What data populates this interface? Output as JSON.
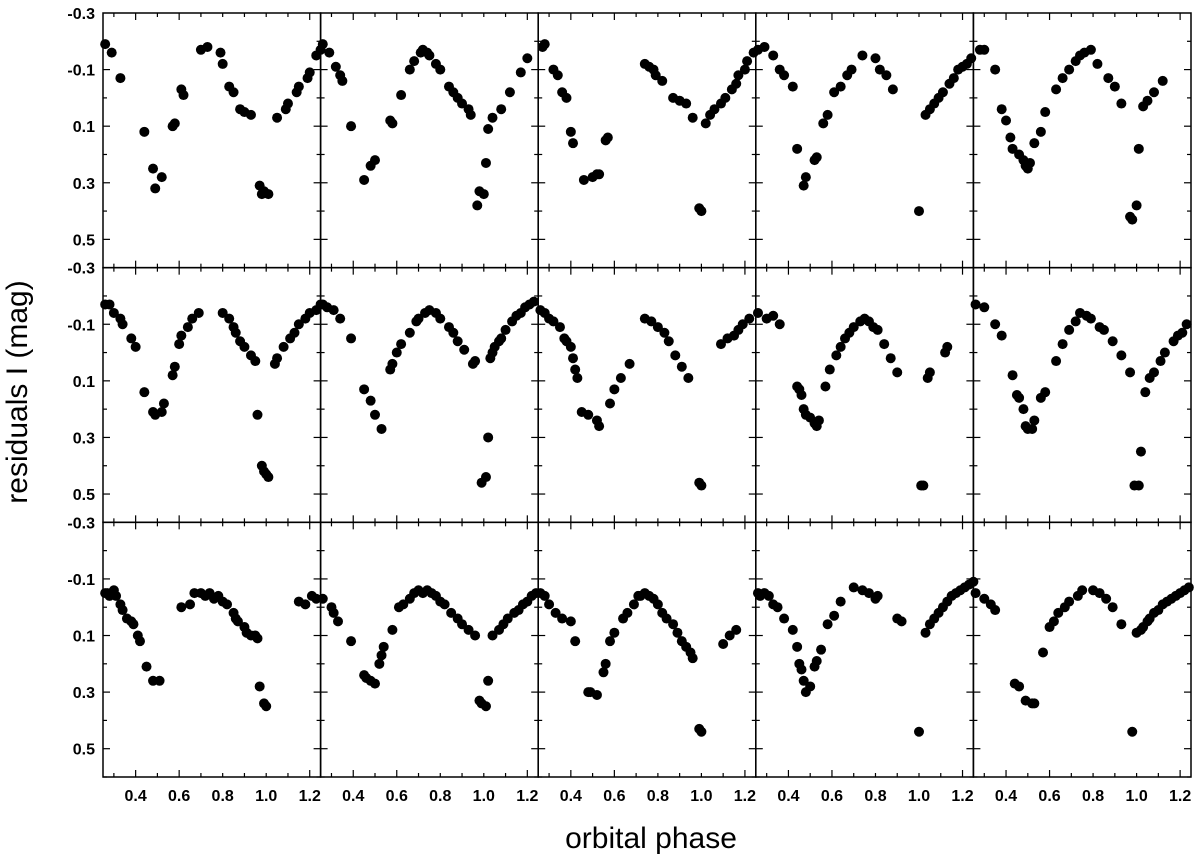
{
  "chart_data": {
    "type": "scatter",
    "layout": {
      "rows": 3,
      "cols": 5
    },
    "xlabel": "orbital phase",
    "ylabel": "residuals I (mag)",
    "xlim": [
      0.25,
      1.25
    ],
    "ylim": [
      0.6,
      -0.3
    ],
    "y_inverted": true,
    "xticks": [
      0.4,
      0.6,
      0.8,
      1.0,
      1.2
    ],
    "xtick_labels": [
      "0.4",
      "0.6",
      "0.8",
      "1.0",
      "1.2"
    ],
    "yticks": [
      -0.3,
      -0.1,
      0.1,
      0.3,
      0.5
    ],
    "ytick_labels": [
      "-0.3",
      "-0.1",
      "0.1",
      "0.3",
      "0.5"
    ],
    "marker_color": "#000000",
    "panels": [
      {
        "x": [
          0.26,
          0.29,
          0.33,
          0.44,
          0.48,
          0.49,
          0.52,
          0.57,
          0.58,
          0.61,
          0.62,
          0.7,
          0.73,
          0.79,
          0.8,
          0.83,
          0.85,
          0.88,
          0.9,
          0.93,
          0.97,
          0.98,
          0.99,
          1.01,
          1.05,
          1.09,
          1.1,
          1.14,
          1.15,
          1.19,
          1.2,
          1.23,
          1.25
        ],
        "y": [
          -0.19,
          -0.16,
          -0.07,
          0.12,
          0.25,
          0.32,
          0.28,
          0.1,
          0.09,
          -0.03,
          -0.01,
          -0.17,
          -0.18,
          -0.16,
          -0.12,
          -0.04,
          -0.02,
          0.04,
          0.05,
          0.06,
          0.31,
          0.34,
          0.33,
          0.34,
          0.07,
          0.04,
          0.02,
          -0.02,
          -0.04,
          -0.07,
          -0.09,
          -0.15,
          -0.17
        ]
      },
      {
        "x": [
          0.26,
          0.29,
          0.32,
          0.34,
          0.35,
          0.39,
          0.45,
          0.48,
          0.5,
          0.57,
          0.58,
          0.62,
          0.66,
          0.68,
          0.71,
          0.72,
          0.74,
          0.75,
          0.78,
          0.8,
          0.84,
          0.86,
          0.88,
          0.9,
          0.93,
          0.94,
          0.97,
          0.98,
          1.0,
          1.01,
          1.02,
          1.04,
          1.08,
          1.12,
          1.17,
          1.2
        ],
        "y": [
          -0.19,
          -0.16,
          -0.11,
          -0.08,
          -0.06,
          0.1,
          0.29,
          0.24,
          0.22,
          0.08,
          0.09,
          -0.01,
          -0.1,
          -0.13,
          -0.16,
          -0.17,
          -0.16,
          -0.15,
          -0.12,
          -0.1,
          -0.04,
          -0.02,
          0.0,
          0.02,
          0.04,
          0.06,
          0.38,
          0.33,
          0.34,
          0.23,
          0.11,
          0.07,
          0.04,
          -0.02,
          -0.09,
          -0.14
        ]
      },
      {
        "x": [
          0.27,
          0.28,
          0.32,
          0.34,
          0.36,
          0.38,
          0.4,
          0.41,
          0.46,
          0.5,
          0.52,
          0.53,
          0.56,
          0.57,
          0.74,
          0.76,
          0.78,
          0.79,
          0.82,
          0.87,
          0.9,
          0.93,
          0.96,
          0.99,
          1.0,
          1.02,
          1.04,
          1.06,
          1.09,
          1.11,
          1.14,
          1.16,
          1.17,
          1.2,
          1.21,
          1.24
        ],
        "y": [
          -0.18,
          -0.19,
          -0.1,
          -0.08,
          -0.02,
          0.0,
          0.12,
          0.16,
          0.29,
          0.28,
          0.27,
          0.27,
          0.15,
          0.14,
          -0.12,
          -0.11,
          -0.1,
          -0.08,
          -0.06,
          0.0,
          0.01,
          0.02,
          0.07,
          0.39,
          0.4,
          0.09,
          0.06,
          0.04,
          0.02,
          0.0,
          -0.03,
          -0.05,
          -0.08,
          -0.1,
          -0.13,
          -0.16
        ]
      },
      {
        "x": [
          0.26,
          0.29,
          0.33,
          0.36,
          0.38,
          0.42,
          0.44,
          0.47,
          0.48,
          0.52,
          0.53,
          0.56,
          0.58,
          0.61,
          0.64,
          0.67,
          0.69,
          0.74,
          0.8,
          0.82,
          0.85,
          0.88,
          1.0,
          1.03,
          1.05,
          1.07,
          1.09,
          1.11,
          1.14,
          1.16,
          1.18,
          1.2,
          1.22,
          1.24
        ],
        "y": [
          -0.17,
          -0.18,
          -0.15,
          -0.1,
          -0.08,
          -0.04,
          0.18,
          0.31,
          0.28,
          0.22,
          0.21,
          0.09,
          0.06,
          -0.02,
          -0.04,
          -0.08,
          -0.1,
          -0.15,
          -0.14,
          -0.1,
          -0.08,
          -0.03,
          0.4,
          0.06,
          0.04,
          0.02,
          0.0,
          -0.02,
          -0.05,
          -0.07,
          -0.1,
          -0.11,
          -0.12,
          -0.14
        ]
      },
      {
        "x": [
          0.28,
          0.3,
          0.35,
          0.38,
          0.4,
          0.42,
          0.43,
          0.46,
          0.48,
          0.49,
          0.5,
          0.51,
          0.53,
          0.56,
          0.58,
          0.63,
          0.66,
          0.69,
          0.72,
          0.74,
          0.76,
          0.79,
          0.82,
          0.87,
          0.9,
          0.93,
          0.97,
          0.98,
          1.0,
          1.01,
          1.03,
          1.05,
          1.08,
          1.12
        ],
        "y": [
          -0.17,
          -0.17,
          -0.1,
          0.04,
          0.08,
          0.14,
          0.18,
          0.2,
          0.22,
          0.24,
          0.25,
          0.23,
          0.16,
          0.12,
          0.05,
          -0.03,
          -0.07,
          -0.1,
          -0.13,
          -0.15,
          -0.16,
          -0.17,
          -0.12,
          -0.07,
          -0.04,
          0.02,
          0.42,
          0.43,
          0.38,
          0.18,
          0.03,
          0.01,
          -0.02,
          -0.06
        ]
      },
      {
        "x": [
          0.26,
          0.28,
          0.3,
          0.33,
          0.34,
          0.38,
          0.4,
          0.44,
          0.48,
          0.49,
          0.52,
          0.53,
          0.57,
          0.58,
          0.6,
          0.61,
          0.64,
          0.66,
          0.69,
          0.8,
          0.83,
          0.85,
          0.86,
          0.88,
          0.9,
          0.93,
          0.95,
          0.96,
          0.98,
          0.99,
          1.0,
          1.01,
          1.04,
          1.05,
          1.08,
          1.11,
          1.13,
          1.15,
          1.18,
          1.2,
          1.23,
          1.25
        ],
        "y": [
          -0.17,
          -0.17,
          -0.14,
          -0.12,
          -0.1,
          -0.05,
          -0.02,
          0.14,
          0.21,
          0.22,
          0.21,
          0.18,
          0.08,
          0.05,
          -0.03,
          -0.06,
          -0.09,
          -0.12,
          -0.14,
          -0.14,
          -0.12,
          -0.09,
          -0.07,
          -0.04,
          -0.02,
          0.01,
          0.03,
          0.22,
          0.4,
          0.42,
          0.43,
          0.44,
          0.04,
          0.02,
          -0.02,
          -0.05,
          -0.07,
          -0.1,
          -0.12,
          -0.14,
          -0.15,
          -0.17
        ]
      },
      {
        "x": [
          0.26,
          0.28,
          0.31,
          0.34,
          0.39,
          0.45,
          0.48,
          0.5,
          0.53,
          0.57,
          0.58,
          0.6,
          0.62,
          0.66,
          0.69,
          0.7,
          0.73,
          0.75,
          0.78,
          0.8,
          0.84,
          0.86,
          0.88,
          0.91,
          0.95,
          0.96,
          0.99,
          1.01,
          1.02,
          1.03,
          1.04,
          1.05,
          1.07,
          1.08,
          1.1,
          1.13,
          1.15,
          1.17,
          1.19,
          1.21,
          1.23
        ],
        "y": [
          -0.17,
          -0.16,
          -0.15,
          -0.12,
          -0.05,
          0.13,
          0.17,
          0.22,
          0.27,
          0.06,
          0.04,
          0.0,
          -0.03,
          -0.07,
          -0.11,
          -0.12,
          -0.14,
          -0.15,
          -0.14,
          -0.12,
          -0.09,
          -0.07,
          -0.04,
          -0.01,
          0.04,
          0.03,
          0.46,
          0.44,
          0.3,
          0.02,
          0.0,
          -0.02,
          -0.04,
          -0.05,
          -0.08,
          -0.11,
          -0.13,
          -0.14,
          -0.16,
          -0.17,
          -0.18
        ]
      },
      {
        "x": [
          0.26,
          0.28,
          0.3,
          0.32,
          0.35,
          0.37,
          0.38,
          0.4,
          0.41,
          0.42,
          0.43,
          0.45,
          0.48,
          0.52,
          0.53,
          0.58,
          0.6,
          0.63,
          0.67,
          0.74,
          0.77,
          0.8,
          0.83,
          0.85,
          0.88,
          0.91,
          0.94,
          0.99,
          1.0,
          1.09,
          1.12,
          1.15,
          1.17,
          1.19,
          1.22
        ],
        "y": [
          -0.15,
          -0.14,
          -0.12,
          -0.11,
          -0.09,
          -0.05,
          -0.04,
          -0.02,
          0.02,
          0.06,
          0.09,
          0.21,
          0.22,
          0.24,
          0.26,
          0.18,
          0.13,
          0.09,
          0.04,
          -0.12,
          -0.11,
          -0.09,
          -0.07,
          -0.04,
          0.01,
          0.05,
          0.09,
          0.46,
          0.47,
          -0.03,
          -0.05,
          -0.06,
          -0.08,
          -0.1,
          -0.12
        ]
      },
      {
        "x": [
          0.26,
          0.3,
          0.33,
          0.36,
          0.44,
          0.45,
          0.46,
          0.47,
          0.48,
          0.5,
          0.52,
          0.53,
          0.54,
          0.57,
          0.59,
          0.62,
          0.64,
          0.66,
          0.68,
          0.7,
          0.73,
          0.75,
          0.77,
          0.79,
          0.81,
          0.84,
          0.87,
          0.9,
          1.01,
          1.02,
          1.04,
          1.05,
          1.12,
          1.13
        ],
        "y": [
          -0.14,
          -0.12,
          -0.13,
          -0.1,
          0.12,
          0.13,
          0.15,
          0.2,
          0.22,
          0.23,
          0.25,
          0.26,
          0.24,
          0.12,
          0.06,
          0.01,
          -0.02,
          -0.05,
          -0.07,
          -0.09,
          -0.11,
          -0.12,
          -0.11,
          -0.09,
          -0.08,
          -0.03,
          0.02,
          0.07,
          0.47,
          0.47,
          0.09,
          0.07,
          0.0,
          -0.02
        ]
      },
      {
        "x": [
          0.26,
          0.3,
          0.35,
          0.38,
          0.43,
          0.45,
          0.46,
          0.48,
          0.49,
          0.5,
          0.52,
          0.53,
          0.56,
          0.58,
          0.63,
          0.66,
          0.69,
          0.72,
          0.74,
          0.77,
          0.79,
          0.83,
          0.85,
          0.89,
          0.93,
          0.97,
          0.99,
          1.01,
          1.02,
          1.04,
          1.06,
          1.08,
          1.11,
          1.13,
          1.17,
          1.19,
          1.21,
          1.23
        ],
        "y": [
          -0.17,
          -0.16,
          -0.1,
          -0.06,
          0.08,
          0.15,
          0.16,
          0.2,
          0.26,
          0.27,
          0.27,
          0.24,
          0.16,
          0.14,
          0.03,
          -0.03,
          -0.08,
          -0.11,
          -0.14,
          -0.13,
          -0.12,
          -0.09,
          -0.08,
          -0.04,
          0.01,
          0.07,
          0.47,
          0.47,
          0.35,
          0.14,
          0.09,
          0.07,
          0.03,
          0.0,
          -0.04,
          -0.06,
          -0.07,
          -0.1
        ]
      },
      {
        "x": [
          0.26,
          0.27,
          0.28,
          0.3,
          0.31,
          0.33,
          0.34,
          0.36,
          0.38,
          0.39,
          0.41,
          0.42,
          0.45,
          0.48,
          0.51,
          0.61,
          0.65,
          0.67,
          0.7,
          0.72,
          0.74,
          0.76,
          0.78,
          0.8,
          0.82,
          0.85,
          0.86,
          0.87,
          0.9,
          0.91,
          0.93,
          0.95,
          0.96,
          0.97,
          0.99,
          1.0,
          1.15,
          1.18,
          1.21,
          1.23
        ],
        "y": [
          -0.05,
          -0.05,
          -0.04,
          -0.06,
          -0.04,
          -0.01,
          0.01,
          0.04,
          0.05,
          0.06,
          0.1,
          0.12,
          0.21,
          0.26,
          0.26,
          0.0,
          -0.01,
          -0.05,
          -0.05,
          -0.04,
          -0.05,
          -0.03,
          -0.04,
          -0.02,
          -0.01,
          0.02,
          0.04,
          0.05,
          0.07,
          0.09,
          0.1,
          0.1,
          0.11,
          0.28,
          0.34,
          0.35,
          -0.02,
          -0.01,
          -0.04,
          -0.03
        ]
      },
      {
        "x": [
          0.26,
          0.3,
          0.31,
          0.33,
          0.39,
          0.45,
          0.46,
          0.48,
          0.5,
          0.52,
          0.53,
          0.54,
          0.58,
          0.61,
          0.63,
          0.66,
          0.68,
          0.7,
          0.72,
          0.74,
          0.76,
          0.78,
          0.8,
          0.82,
          0.85,
          0.88,
          0.9,
          0.93,
          0.96,
          0.98,
          0.99,
          1.01,
          1.02,
          1.04,
          1.07,
          1.09,
          1.11,
          1.14,
          1.16,
          1.18,
          1.2,
          1.22,
          1.24
        ],
        "y": [
          -0.03,
          0.0,
          0.02,
          0.05,
          0.12,
          0.24,
          0.25,
          0.26,
          0.27,
          0.2,
          0.17,
          0.14,
          0.08,
          0.0,
          -0.01,
          -0.03,
          -0.05,
          -0.06,
          -0.05,
          -0.06,
          -0.05,
          -0.04,
          -0.02,
          -0.01,
          0.02,
          0.04,
          0.06,
          0.08,
          0.1,
          0.33,
          0.34,
          0.35,
          0.26,
          0.1,
          0.08,
          0.06,
          0.04,
          0.02,
          0.01,
          -0.01,
          -0.02,
          -0.04,
          -0.05
        ]
      },
      {
        "x": [
          0.26,
          0.28,
          0.3,
          0.33,
          0.36,
          0.4,
          0.42,
          0.48,
          0.49,
          0.52,
          0.55,
          0.56,
          0.58,
          0.6,
          0.64,
          0.66,
          0.69,
          0.71,
          0.72,
          0.74,
          0.76,
          0.78,
          0.8,
          0.82,
          0.84,
          0.87,
          0.89,
          0.91,
          0.93,
          0.95,
          0.96,
          0.99,
          1.0,
          1.1,
          1.13,
          1.16
        ],
        "y": [
          -0.05,
          -0.04,
          -0.01,
          0.02,
          0.04,
          0.05,
          0.12,
          0.3,
          0.3,
          0.31,
          0.23,
          0.2,
          0.12,
          0.09,
          0.04,
          0.02,
          -0.01,
          -0.04,
          -0.04,
          -0.05,
          -0.04,
          -0.03,
          -0.01,
          0.02,
          0.04,
          0.06,
          0.09,
          0.12,
          0.14,
          0.16,
          0.18,
          0.43,
          0.44,
          0.13,
          0.1,
          0.08
        ]
      },
      {
        "x": [
          0.26,
          0.27,
          0.29,
          0.31,
          0.33,
          0.35,
          0.38,
          0.42,
          0.44,
          0.45,
          0.46,
          0.47,
          0.48,
          0.5,
          0.52,
          0.53,
          0.55,
          0.58,
          0.61,
          0.64,
          0.7,
          0.74,
          0.77,
          0.8,
          0.81,
          0.9,
          0.92,
          1.0,
          1.03,
          1.05,
          1.07,
          1.09,
          1.11,
          1.13,
          1.15,
          1.17,
          1.19,
          1.21,
          1.23,
          1.25
        ],
        "y": [
          -0.05,
          -0.04,
          -0.05,
          -0.04,
          -0.01,
          0.0,
          0.04,
          0.08,
          0.14,
          0.2,
          0.22,
          0.26,
          0.3,
          0.28,
          0.21,
          0.19,
          0.15,
          0.06,
          0.03,
          -0.02,
          -0.07,
          -0.06,
          -0.05,
          -0.03,
          -0.04,
          0.04,
          0.05,
          0.44,
          0.09,
          0.06,
          0.04,
          0.02,
          0.0,
          -0.02,
          -0.04,
          -0.05,
          -0.06,
          -0.07,
          -0.08,
          -0.09
        ]
      },
      {
        "x": [
          0.26,
          0.3,
          0.33,
          0.35,
          0.44,
          0.46,
          0.49,
          0.52,
          0.53,
          0.57,
          0.6,
          0.62,
          0.64,
          0.67,
          0.69,
          0.73,
          0.75,
          0.8,
          0.83,
          0.86,
          0.89,
          0.93,
          0.98,
          1.0,
          1.02,
          1.03,
          1.05,
          1.06,
          1.08,
          1.1,
          1.12,
          1.14,
          1.16,
          1.18,
          1.2,
          1.22,
          1.24
        ],
        "y": [
          -0.05,
          -0.03,
          -0.01,
          0.01,
          0.27,
          0.28,
          0.33,
          0.34,
          0.34,
          0.16,
          0.07,
          0.05,
          0.02,
          0.0,
          -0.02,
          -0.04,
          -0.06,
          -0.06,
          -0.05,
          -0.03,
          0.0,
          0.06,
          0.44,
          0.09,
          0.08,
          0.07,
          0.05,
          0.04,
          0.02,
          0.01,
          -0.01,
          -0.02,
          -0.03,
          -0.04,
          -0.05,
          -0.06,
          -0.07
        ]
      }
    ]
  }
}
